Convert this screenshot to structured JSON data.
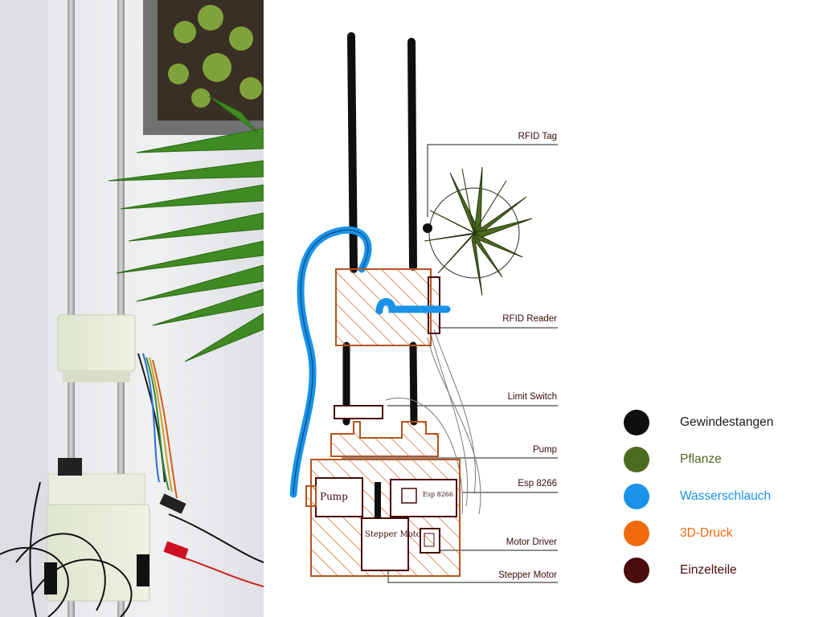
{
  "callouts": [
    "RFID Tag",
    "RFID Reader",
    "Limit Switch",
    "Pump",
    "Esp 8266",
    "Motor Driver",
    "Stepper Motor"
  ],
  "sketch_text": {
    "pump_box": "Pump",
    "esp_box": "Esp 8266",
    "stepper_box": "Stepper Motor"
  },
  "legend": [
    {
      "label": "Gewindestangen",
      "color": "#0f0f0f",
      "text_color": "#1a1a1a"
    },
    {
      "label": "Pflanze",
      "color": "#4d6b1e",
      "text_color": "#4d6b1e"
    },
    {
      "label": "Wasserschlauch",
      "color": "#1993ea",
      "text_color": "#1993ea"
    },
    {
      "label": "3D-Druck",
      "color": "#ef6b0d",
      "text_color": "#ef6b0d"
    },
    {
      "label": "Einzelteile",
      "color": "#4a0b0b",
      "text_color": "#4a0b0b"
    }
  ]
}
